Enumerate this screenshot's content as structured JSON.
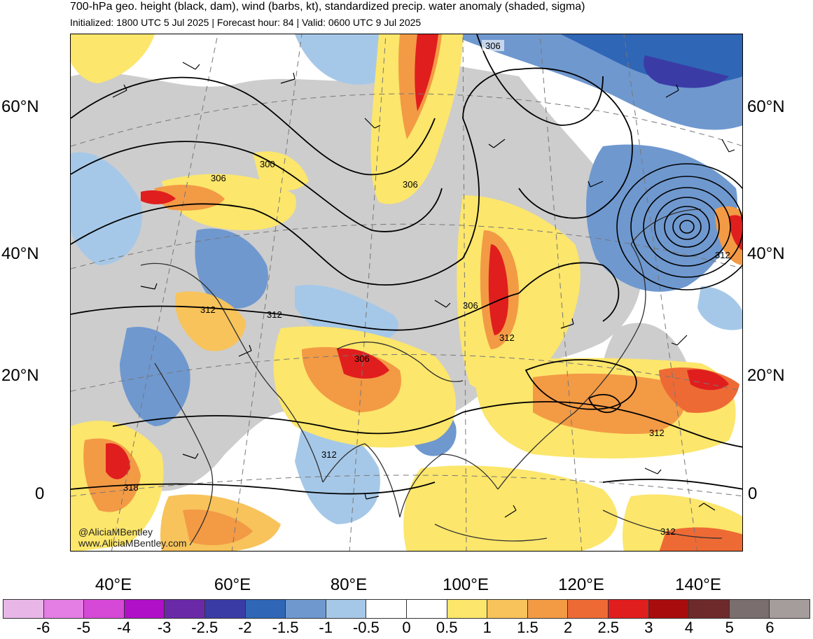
{
  "header": {
    "title": "700-hPa geo. height (black, dam), wind (barbs, kt), standardized precip. water anomaly (shaded, sigma)",
    "subtitle": "Initialized: 1800 UTC 5 Jul 2025 | Forecast hour: 84 | Valid: 0600 UTC 9 Jul 2025"
  },
  "map": {
    "lat_labels": [
      "60°N",
      "40°N",
      "20°N",
      "0"
    ],
    "lon_labels": [
      "40°E",
      "60°E",
      "80°E",
      "100°E",
      "120°E",
      "140°E"
    ],
    "contour_labels": [
      "306",
      "300",
      "306",
      "306",
      "312",
      "312",
      "306",
      "312",
      "306",
      "312",
      "312",
      "312",
      "318",
      "312"
    ],
    "credit_handle": "@AliciaMBentley",
    "credit_url": "www.AliciaMBentley.com",
    "colors": {
      "land_gray": "#cdcdcd",
      "coast": "#303030",
      "contour": "#000000"
    }
  },
  "colorbar": {
    "tick_labels": [
      "-6",
      "-5",
      "-4",
      "-3",
      "-2.5",
      "-2",
      "-1.5",
      "-1",
      "-0.5",
      "0",
      "0.5",
      "1",
      "1.5",
      "2",
      "2.5",
      "3",
      "4",
      "5",
      "6"
    ],
    "colors": [
      "#e8b7e8",
      "#e47de4",
      "#d648d6",
      "#b010c8",
      "#6a2aa8",
      "#3b3ba6",
      "#2f66b5",
      "#6f98cf",
      "#a6c8e8",
      "#ffffff",
      "#ffffff",
      "#fce66b",
      "#f7c35a",
      "#f39a45",
      "#ee6a35",
      "#e01e1e",
      "#a80c0c",
      "#6e2a2a",
      "#7a6e6e",
      "#a59c9c"
    ]
  }
}
